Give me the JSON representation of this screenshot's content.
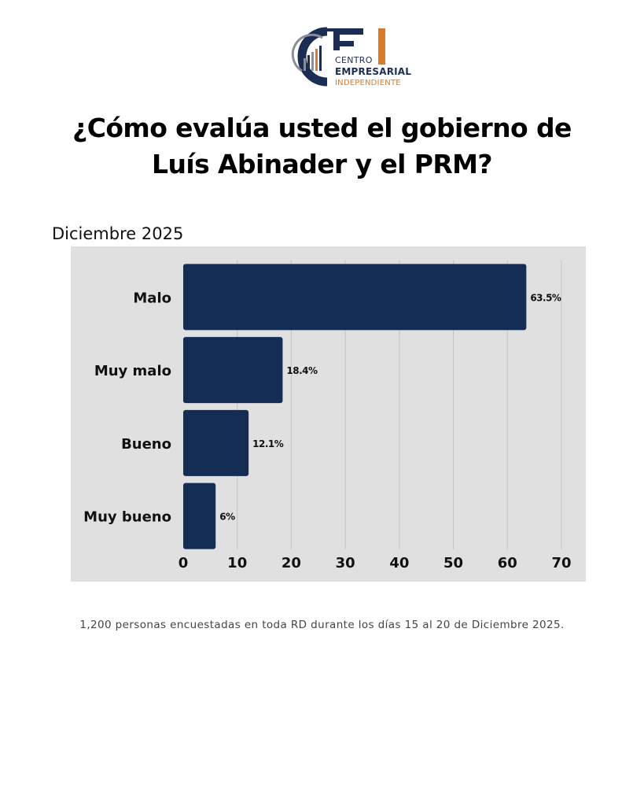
{
  "logo": {
    "line1": "CENTRO",
    "line2": "EMPRESARIAL",
    "line3": "INDEPENDIENTE",
    "colors": {
      "navy": "#1b2d55",
      "orange": "#d97b2a",
      "gray": "#8a8f99"
    }
  },
  "title": {
    "line1": "¿Cómo evalúa usted el gobierno de",
    "line2": "Luís Abinader y el PRM?"
  },
  "period": "Diciembre 2025",
  "chart_data": {
    "type": "bar",
    "orientation": "horizontal",
    "categories": [
      "Malo",
      "Muy malo",
      "Bueno",
      "Muy bueno"
    ],
    "values": [
      63.5,
      18.4,
      12.1,
      6
    ],
    "data_labels": [
      "63.5%",
      "18.4%",
      "12.1%",
      "6%"
    ],
    "xticks": [
      0,
      10,
      20,
      30,
      40,
      50,
      60,
      70
    ],
    "xlim": [
      0,
      70
    ],
    "grid": "vertical",
    "legend": "none",
    "colors": {
      "bar": "#142d54",
      "panel": "#e0e0e0",
      "grid": "#c4c4c4"
    }
  },
  "footnote": "1,200 personas encuestadas en toda RD durante los días 15 al 20 de Diciembre 2025."
}
